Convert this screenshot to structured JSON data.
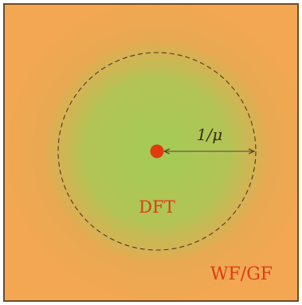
{
  "diagram": {
    "center_label": "DFT",
    "outer_label": "WF/GF",
    "radius_label": "1/μ",
    "colors": {
      "outer_fill": "#f4a752",
      "inner_fill": "#a4cb55",
      "frame_stroke": "#6b4a2a",
      "center_dot": "#e13a0f",
      "text_red": "#dc3c17",
      "text_dark": "#3a2a14",
      "dashed_stroke": "#4a3a28",
      "arrow_stroke": "#5a4428"
    }
  }
}
